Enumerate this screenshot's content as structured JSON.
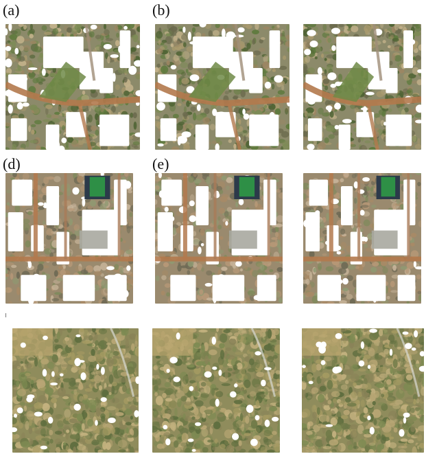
{
  "figure": {
    "labels": {
      "a": "(a)",
      "b": "(b)",
      "d": "(d)",
      "e": "(e)"
    }
  },
  "colors": {
    "background": "#ffffff",
    "vegetation": "#677c4a",
    "dirt_road": "#b3794d",
    "missing_data": "#ffffff",
    "grass_field": "#2e8f46",
    "dry_field": "#b9a56f"
  },
  "panels": [
    {
      "row": 1,
      "col": 1,
      "scene": "village-road-scene",
      "label_key": "a"
    },
    {
      "row": 1,
      "col": 2,
      "scene": "village-road-scene",
      "label_key": "b"
    },
    {
      "row": 1,
      "col": 3,
      "scene": "village-road-scene",
      "label_key": ""
    },
    {
      "row": 2,
      "col": 1,
      "scene": "town-block-scene",
      "label_key": "d"
    },
    {
      "row": 2,
      "col": 2,
      "scene": "town-block-scene",
      "label_key": "e"
    },
    {
      "row": 2,
      "col": 3,
      "scene": "town-block-scene",
      "label_key": ""
    },
    {
      "row": 3,
      "col": 1,
      "scene": "field-scene",
      "label_key": ""
    },
    {
      "row": 3,
      "col": 2,
      "scene": "field-scene",
      "label_key": ""
    },
    {
      "row": 3,
      "col": 3,
      "scene": "field-scene",
      "label_key": ""
    }
  ]
}
